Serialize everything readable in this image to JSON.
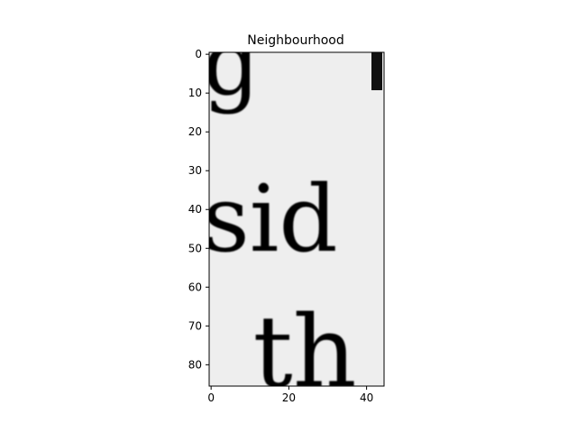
{
  "chart_data": {
    "type": "heatmap",
    "title": "Neighbourhood",
    "xlabel": "",
    "ylabel": "",
    "xlim": [
      -0.5,
      44.5
    ],
    "ylim": [
      85.5,
      -0.5
    ],
    "x_ticks": [
      0,
      20,
      40
    ],
    "y_ticks": [
      0,
      10,
      20,
      30,
      40,
      50,
      60,
      70,
      80
    ],
    "colormap": "gray",
    "grid": false,
    "content": "grayscale crop of scanned printed text showing the letters 'g', 'sid' and 'th'",
    "glyphs": [
      {
        "text": "g",
        "row_center": 10,
        "col_start": 1
      },
      {
        "text": "sid",
        "row_center": 40,
        "col_start": 1
      },
      {
        "text": "th",
        "row_center": 80,
        "col_start": 14
      }
    ]
  }
}
